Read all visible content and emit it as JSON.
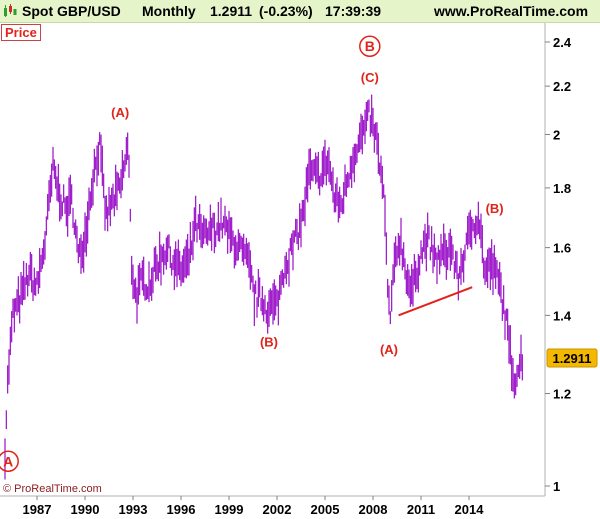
{
  "header": {
    "symbol": "Spot GBP/USD",
    "period": "Monthly",
    "last": "1.2911",
    "change": "(-0.23%)",
    "time": "17:39:39",
    "site": "www.ProRealTime.com"
  },
  "panel_label": "Price",
  "copyright": "© ProRealTime.com",
  "colors": {
    "price": "#9a10c8",
    "annotation": "#e0241b",
    "trendline": "#e0241b",
    "last_price_bg": "#f5b800",
    "header_bg": "#e6f4ca"
  },
  "chart_data": {
    "type": "line",
    "style": "monthly price bars",
    "x_ticks": [
      "1987",
      "1990",
      "1993",
      "1996",
      "1999",
      "2002",
      "2005",
      "2008",
      "2011",
      "2014"
    ],
    "y_ticks": [
      "2.4",
      "2.2",
      "2",
      "1.8",
      "1.6",
      "1.4",
      "1.2",
      "1"
    ],
    "y_scale": "log",
    "ylim": [
      0.98,
      2.5
    ],
    "last_price": "1.2911",
    "grid": false,
    "series": [
      {
        "points": [
          [
            1985.0,
            1.08
          ],
          [
            1985.2,
            1.25
          ],
          [
            1985.5,
            1.4
          ],
          [
            1986.0,
            1.45
          ],
          [
            1986.5,
            1.52
          ],
          [
            1987.0,
            1.48
          ],
          [
            1987.5,
            1.62
          ],
          [
            1988.0,
            1.87
          ],
          [
            1988.3,
            1.8
          ],
          [
            1988.8,
            1.72
          ],
          [
            1989.2,
            1.76
          ],
          [
            1989.6,
            1.56
          ],
          [
            1990.0,
            1.64
          ],
          [
            1990.5,
            1.84
          ],
          [
            1990.9,
            1.96
          ],
          [
            1991.3,
            1.7
          ],
          [
            1991.8,
            1.76
          ],
          [
            1992.2,
            1.8
          ],
          [
            1992.7,
            1.96
          ],
          [
            1992.9,
            1.55
          ],
          [
            1993.2,
            1.45
          ],
          [
            1993.6,
            1.5
          ],
          [
            1994.0,
            1.49
          ],
          [
            1994.6,
            1.56
          ],
          [
            1995.1,
            1.6
          ],
          [
            1995.6,
            1.55
          ],
          [
            1996.0,
            1.53
          ],
          [
            1996.5,
            1.56
          ],
          [
            1996.9,
            1.68
          ],
          [
            1997.4,
            1.63
          ],
          [
            1998.0,
            1.66
          ],
          [
            1998.6,
            1.68
          ],
          [
            1999.0,
            1.64
          ],
          [
            1999.6,
            1.6
          ],
          [
            2000.2,
            1.55
          ],
          [
            2000.6,
            1.45
          ],
          [
            2001.0,
            1.45
          ],
          [
            2001.4,
            1.42
          ],
          [
            2002.0,
            1.43
          ],
          [
            2002.5,
            1.55
          ],
          [
            2003.0,
            1.6
          ],
          [
            2003.6,
            1.7
          ],
          [
            2004.0,
            1.85
          ],
          [
            2004.6,
            1.84
          ],
          [
            2005.2,
            1.9
          ],
          [
            2005.6,
            1.76
          ],
          [
            2006.0,
            1.74
          ],
          [
            2006.6,
            1.88
          ],
          [
            2007.0,
            1.96
          ],
          [
            2007.5,
            2.02
          ],
          [
            2007.8,
            2.08
          ],
          [
            2008.2,
            1.98
          ],
          [
            2008.7,
            1.76
          ],
          [
            2008.9,
            1.48
          ],
          [
            2009.1,
            1.39
          ],
          [
            2009.4,
            1.58
          ],
          [
            2009.7,
            1.63
          ],
          [
            2010.1,
            1.52
          ],
          [
            2010.4,
            1.46
          ],
          [
            2010.9,
            1.57
          ],
          [
            2011.4,
            1.63
          ],
          [
            2011.9,
            1.56
          ],
          [
            2012.4,
            1.58
          ],
          [
            2012.9,
            1.6
          ],
          [
            2013.3,
            1.5
          ],
          [
            2013.7,
            1.58
          ],
          [
            2014.2,
            1.67
          ],
          [
            2014.6,
            1.71
          ],
          [
            2015.0,
            1.52
          ],
          [
            2015.4,
            1.55
          ],
          [
            2015.9,
            1.49
          ],
          [
            2016.2,
            1.42
          ],
          [
            2016.5,
            1.32
          ],
          [
            2016.8,
            1.24
          ],
          [
            2017.0,
            1.25
          ],
          [
            2017.3,
            1.29
          ]
        ]
      }
    ],
    "trendline": {
      "from": [
        2009.6,
        1.4
      ],
      "to": [
        2014.2,
        1.48
      ]
    },
    "annotations": [
      {
        "text": "A",
        "x": 1985.2,
        "y": 1.05,
        "circled": true
      },
      {
        "text": "(A)",
        "x": 1992.2,
        "y": 2.09,
        "circled": false
      },
      {
        "text": "(B)",
        "x": 2001.5,
        "y": 1.33,
        "circled": false
      },
      {
        "text": "B",
        "x": 2007.8,
        "y": 2.38,
        "circled": true
      },
      {
        "text": "(C)",
        "x": 2007.8,
        "y": 2.24,
        "circled": false
      },
      {
        "text": "(A)",
        "x": 2009.0,
        "y": 1.31,
        "circled": false
      },
      {
        "text": "(B)",
        "x": 2015.6,
        "y": 1.73,
        "circled": false
      }
    ]
  }
}
